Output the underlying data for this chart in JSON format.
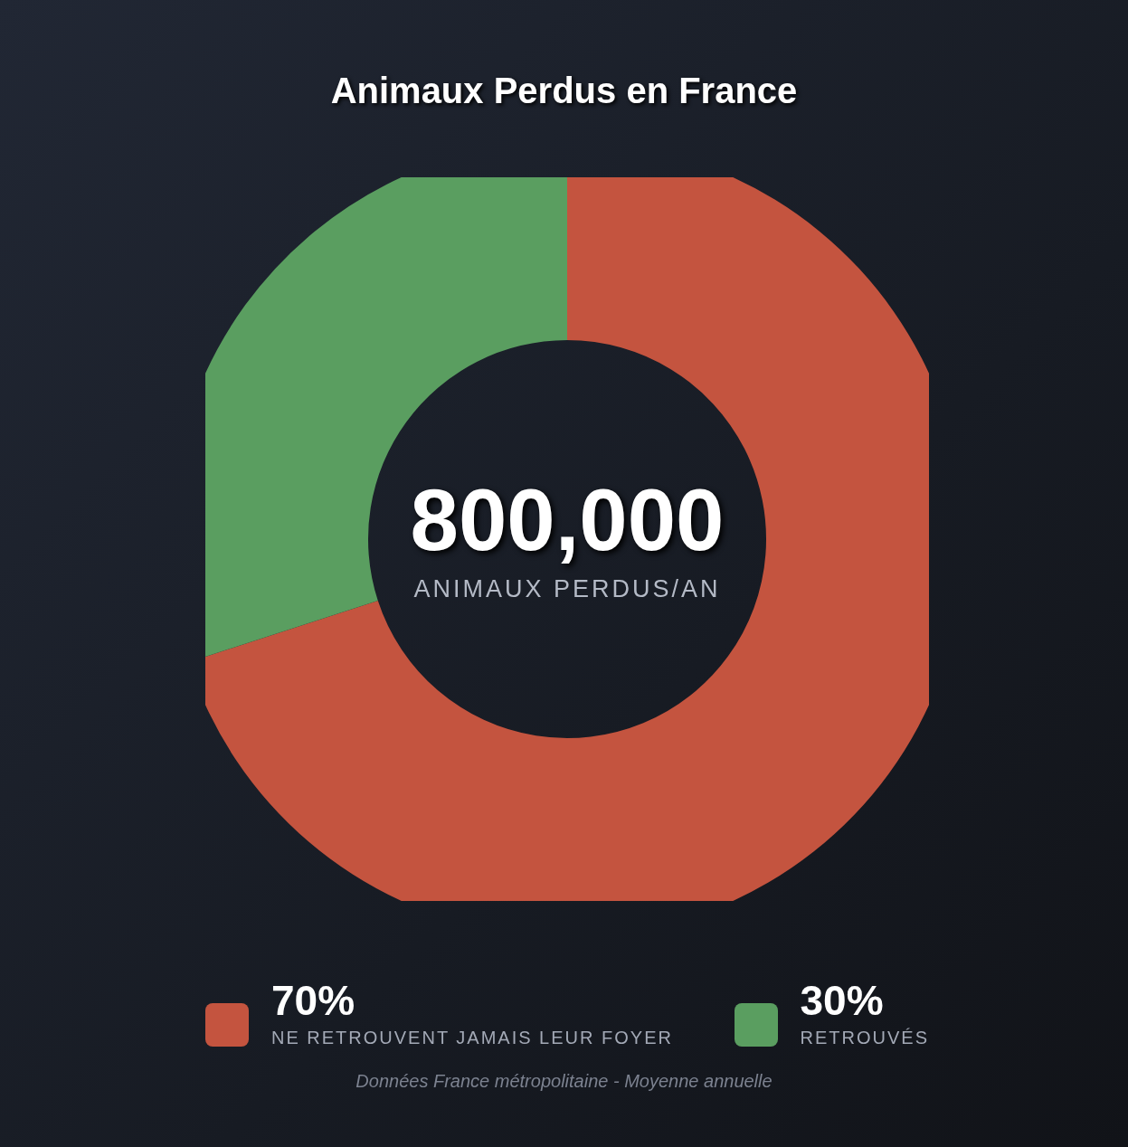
{
  "chart_data": {
    "type": "donut",
    "title": "Animaux Perdus en France",
    "categories": [
      "NE RETROUVENT JAMAIS LEUR FOYER",
      "RETROUVÉS"
    ],
    "values": [
      70,
      30
    ],
    "value_labels": [
      "70%",
      "30%"
    ],
    "colors": [
      "#c4543f",
      "#5a9e60"
    ],
    "legend": "bottom",
    "annotations": [
      "800,000",
      "ANIMAUX PERDUS/AN",
      "Données France métropolitaine - Moyenne annuelle"
    ]
  }
}
